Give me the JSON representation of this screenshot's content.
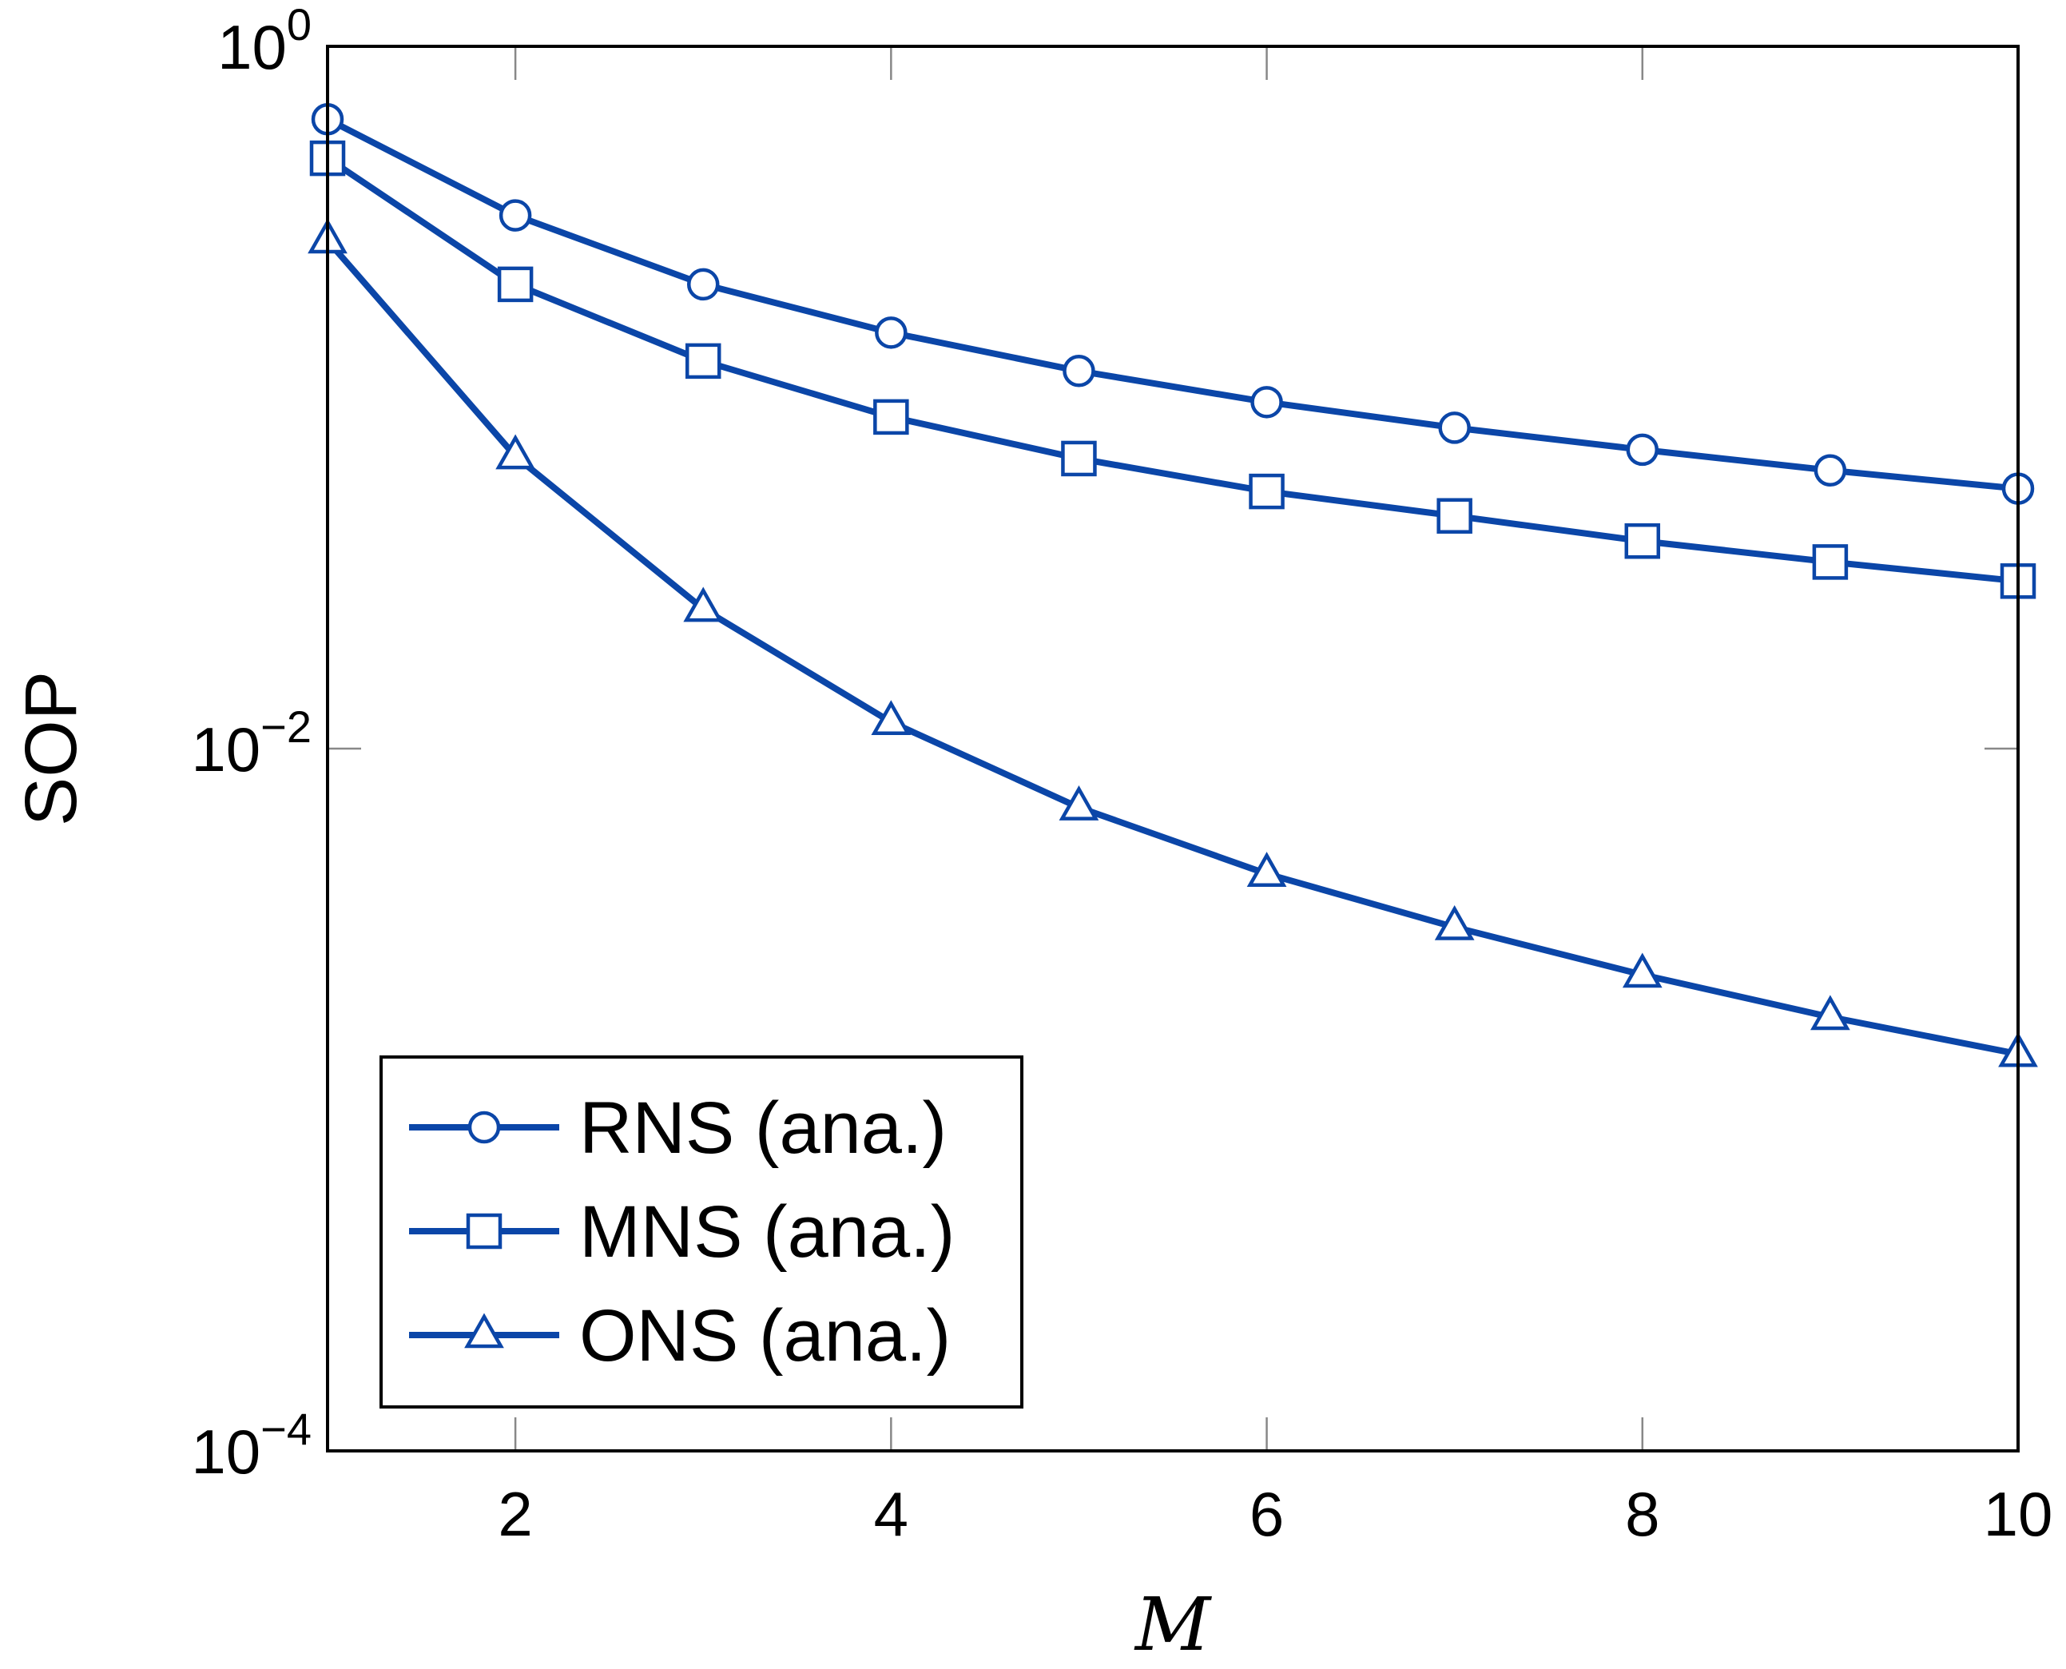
{
  "chart_data": {
    "type": "line",
    "title": "",
    "xlabel": "M",
    "ylabel": "SOP",
    "yscale": "log",
    "xlim": [
      1,
      10
    ],
    "ylim": [
      0.0001,
      1
    ],
    "xticks": [
      2,
      4,
      6,
      8,
      10
    ],
    "yticks": [
      {
        "value": 1,
        "base": "10",
        "exp": "0"
      },
      {
        "value": 0.01,
        "base": "10",
        "exp": "−2"
      },
      {
        "value": 0.0001,
        "base": "10",
        "exp": "−4"
      }
    ],
    "x": [
      1,
      2,
      3,
      4,
      5,
      6,
      7,
      8,
      9,
      10
    ],
    "series": [
      {
        "name": "RNS (ana.)",
        "marker": "circle",
        "values": [
          0.62,
          0.33,
          0.21,
          0.153,
          0.119,
          0.097,
          0.082,
          0.071,
          0.062,
          0.055
        ]
      },
      {
        "name": "MNS (ana.)",
        "marker": "square",
        "values": [
          0.48,
          0.21,
          0.127,
          0.088,
          0.067,
          0.054,
          0.046,
          0.039,
          0.034,
          0.03
        ]
      },
      {
        "name": "ONS (ana.)",
        "marker": "triangle",
        "values": [
          0.28,
          0.068,
          0.025,
          0.0119,
          0.0068,
          0.0044,
          0.0031,
          0.00227,
          0.00172,
          0.00135
        ]
      }
    ],
    "legend": {
      "position": "bottom-left"
    },
    "colors": {
      "series": "#0b46a8",
      "axis": "#000000",
      "tick": "#888888"
    }
  }
}
